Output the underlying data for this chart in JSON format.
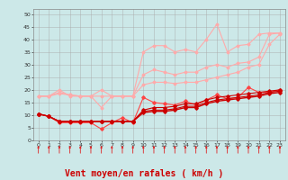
{
  "bg_color": "#cce8e8",
  "grid_color": "#aaaaaa",
  "xlabel": "Vent moyen/en rafales ( km/h )",
  "xlabel_color": "#cc0000",
  "xlabel_fontsize": 7,
  "ylim": [
    0,
    52
  ],
  "xlim": [
    -0.5,
    23.5
  ],
  "arrow_color": "#dd2222",
  "lines": [
    {
      "color": "#ffaaaa",
      "lw": 0.8,
      "values": [
        17.5,
        17.5,
        20.0,
        17.5,
        17.5,
        17.5,
        13.0,
        17.5,
        17.5,
        17.5,
        35.0,
        37.5,
        37.5,
        35.0,
        36.0,
        35.0,
        40.0,
        46.0,
        35.0,
        37.5,
        38.0,
        42.0,
        42.5,
        42.5
      ],
      "marker": "D",
      "markersize": 1.5,
      "zorder": 3
    },
    {
      "color": "#ffaaaa",
      "lw": 0.8,
      "values": [
        17.5,
        17.5,
        19.0,
        18.0,
        17.5,
        17.5,
        20.0,
        17.5,
        17.5,
        17.5,
        26.0,
        28.0,
        27.0,
        26.0,
        27.0,
        27.0,
        29.0,
        30.0,
        29.0,
        30.5,
        31.0,
        33.0,
        42.0,
        42.5
      ],
      "marker": "D",
      "markersize": 1.5,
      "zorder": 3
    },
    {
      "color": "#ffaaaa",
      "lw": 0.8,
      "values": [
        17.5,
        17.5,
        18.5,
        18.0,
        17.5,
        17.5,
        17.5,
        17.5,
        17.5,
        17.5,
        22.0,
        23.0,
        23.0,
        22.5,
        23.0,
        23.0,
        24.0,
        25.0,
        26.0,
        27.0,
        29.0,
        30.0,
        38.0,
        42.0
      ],
      "marker": "D",
      "markersize": 1.5,
      "zorder": 3
    },
    {
      "color": "#ff4444",
      "lw": 0.8,
      "values": [
        10.5,
        9.5,
        7.0,
        7.0,
        7.0,
        7.0,
        4.5,
        7.0,
        9.0,
        7.0,
        17.0,
        15.0,
        14.5,
        14.0,
        15.5,
        14.0,
        16.0,
        18.0,
        16.5,
        17.0,
        21.0,
        19.0,
        19.0,
        20.0
      ],
      "marker": "D",
      "markersize": 1.8,
      "zorder": 4
    },
    {
      "color": "#cc0000",
      "lw": 0.8,
      "values": [
        10.5,
        9.5,
        7.5,
        7.5,
        7.5,
        7.5,
        7.5,
        7.5,
        7.5,
        7.5,
        12.0,
        13.0,
        13.0,
        13.5,
        14.5,
        14.5,
        16.0,
        17.0,
        17.5,
        18.0,
        18.5,
        19.0,
        19.5,
        20.0
      ],
      "marker": "D",
      "markersize": 1.8,
      "zorder": 4
    },
    {
      "color": "#cc0000",
      "lw": 0.8,
      "values": [
        10.5,
        9.5,
        7.5,
        7.5,
        7.5,
        7.5,
        7.5,
        7.5,
        7.5,
        7.5,
        11.5,
        12.0,
        12.0,
        12.5,
        13.5,
        13.5,
        15.0,
        16.0,
        16.5,
        17.0,
        17.5,
        18.0,
        19.0,
        19.5
      ],
      "marker": "D",
      "markersize": 1.8,
      "zorder": 4
    },
    {
      "color": "#cc0000",
      "lw": 1.0,
      "values": [
        10.5,
        9.5,
        7.5,
        7.5,
        7.5,
        7.5,
        7.5,
        7.5,
        7.5,
        7.5,
        11.0,
        11.5,
        11.5,
        12.0,
        13.0,
        13.0,
        14.5,
        15.5,
        16.0,
        16.5,
        17.0,
        17.5,
        18.5,
        19.0
      ],
      "marker": "D",
      "markersize": 1.8,
      "zorder": 4
    }
  ]
}
